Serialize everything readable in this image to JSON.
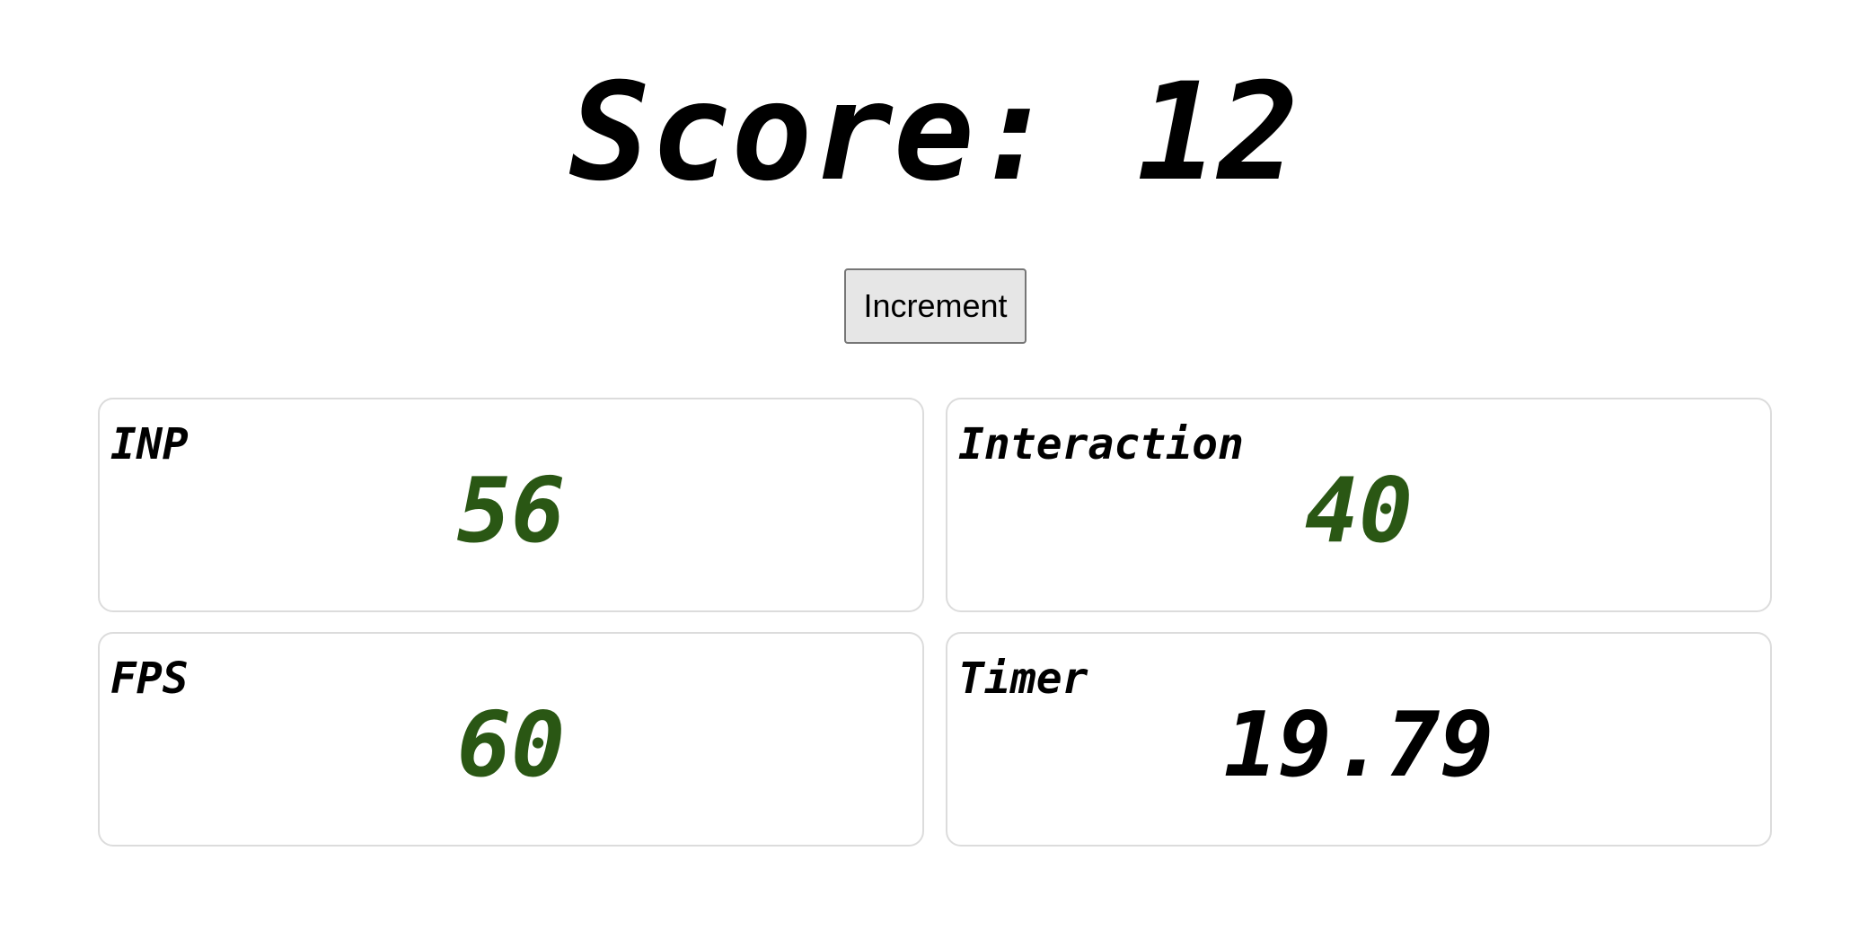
{
  "score": {
    "label": "Score: 12"
  },
  "increment_button": "Increment",
  "colors": {
    "good": "#2a5714",
    "neutral": "#000000"
  },
  "metrics": [
    {
      "label": "INP",
      "value": "56",
      "status": "good"
    },
    {
      "label": "Interaction",
      "value": "40",
      "status": "good"
    },
    {
      "label": "FPS",
      "value": "60",
      "status": "good"
    },
    {
      "label": "Timer",
      "value": "19.79",
      "status": "neutral"
    }
  ]
}
